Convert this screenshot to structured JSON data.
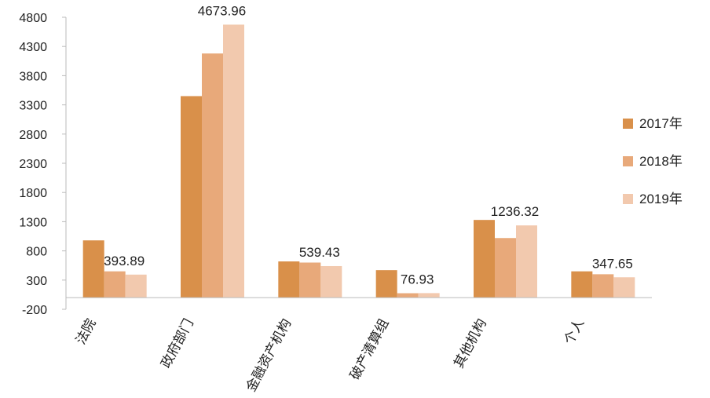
{
  "chart_data": {
    "type": "bar",
    "categories": [
      "法院",
      "政府部门",
      "金融资产机构",
      "破产清算组",
      "其他机构",
      "个人"
    ],
    "series": [
      {
        "name": "2017年",
        "values": [
          980,
          3450,
          620,
          470,
          1330,
          450
        ],
        "color": "#d9904a"
      },
      {
        "name": "2018年",
        "values": [
          450,
          4180,
          600,
          75,
          1020,
          400
        ],
        "color": "#e8a97a"
      },
      {
        "name": "2019年",
        "values": [
          393.89,
          4673.96,
          539.43,
          76.93,
          1236.32,
          347.65
        ],
        "color": "#f2c9ae"
      }
    ],
    "data_labels": [
      {
        "series": 2,
        "category": 0,
        "text": "393.89"
      },
      {
        "series": 2,
        "category": 1,
        "text": "4673.96"
      },
      {
        "series": 2,
        "category": 2,
        "text": "539.43"
      },
      {
        "series": 2,
        "category": 3,
        "text": "76.93"
      },
      {
        "series": 2,
        "category": 4,
        "text": "1236.32"
      },
      {
        "series": 2,
        "category": 5,
        "text": "347.65"
      }
    ],
    "yticks": [
      -200,
      300,
      800,
      1300,
      1800,
      2300,
      2800,
      3300,
      3800,
      4300,
      4800
    ],
    "ylim": [
      -200,
      4800
    ],
    "grid": false,
    "legend_position": "right",
    "title": "",
    "xlabel": "",
    "ylabel": ""
  }
}
